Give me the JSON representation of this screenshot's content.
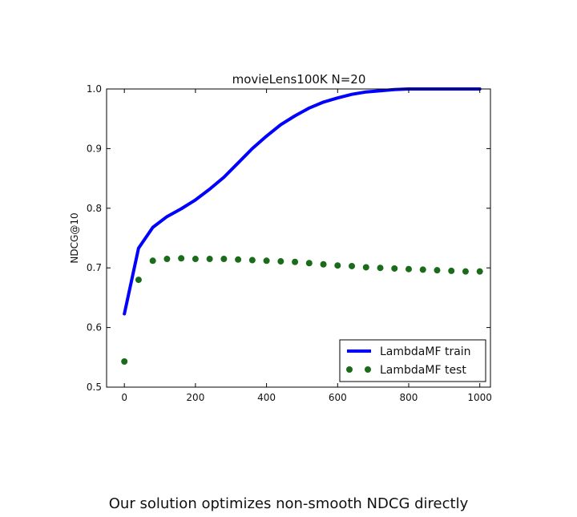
{
  "caption": "Our solution optimizes non-smooth NDCG directly",
  "chart_data": {
    "type": "line",
    "title": "movieLens100K N=20",
    "xlabel": "",
    "ylabel": "NDCG@10",
    "xlim": [
      -50,
      1030
    ],
    "ylim": [
      0.5,
      1.0
    ],
    "xticks": [
      0,
      200,
      400,
      600,
      800,
      1000
    ],
    "yticks": [
      0.5,
      0.6,
      0.7,
      0.8,
      0.9,
      1.0
    ],
    "xtick_labels": [
      "0",
      "200",
      "400",
      "600",
      "800",
      "1000"
    ],
    "ytick_labels": [
      "0.5",
      "0.6",
      "0.7",
      "0.8",
      "0.9",
      "1.0"
    ],
    "grid": false,
    "legend_position": "bottom-right",
    "series": [
      {
        "name": "LambdaMF train",
        "style": "line",
        "color": "#0000ff",
        "x": [
          0,
          40,
          80,
          120,
          160,
          200,
          240,
          280,
          320,
          360,
          400,
          440,
          480,
          520,
          560,
          600,
          640,
          680,
          720,
          760,
          800,
          840,
          880,
          920,
          960,
          1000
        ],
        "y": [
          0.623,
          0.733,
          0.768,
          0.786,
          0.799,
          0.814,
          0.832,
          0.852,
          0.876,
          0.9,
          0.921,
          0.94,
          0.955,
          0.968,
          0.978,
          0.985,
          0.991,
          0.995,
          0.997,
          0.999,
          1.0,
          1.0,
          1.0,
          1.0,
          1.0,
          1.0
        ]
      },
      {
        "name": "LambdaMF test",
        "style": "dots",
        "color": "#1a6b1a",
        "x": [
          0,
          40,
          80,
          120,
          160,
          200,
          240,
          280,
          320,
          360,
          400,
          440,
          480,
          520,
          560,
          600,
          640,
          680,
          720,
          760,
          800,
          840,
          880,
          920,
          960,
          1000
        ],
        "y": [
          0.543,
          0.68,
          0.712,
          0.715,
          0.716,
          0.715,
          0.715,
          0.715,
          0.714,
          0.713,
          0.712,
          0.711,
          0.71,
          0.708,
          0.706,
          0.704,
          0.703,
          0.701,
          0.7,
          0.699,
          0.698,
          0.697,
          0.696,
          0.695,
          0.694,
          0.694
        ]
      }
    ]
  }
}
